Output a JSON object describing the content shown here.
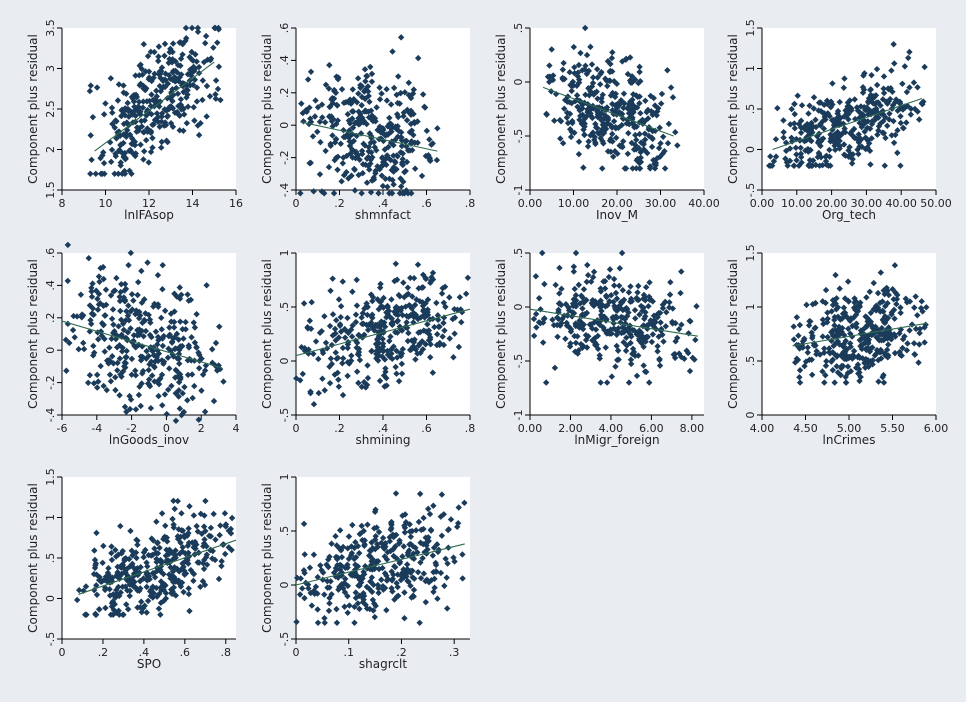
{
  "chart_data": [
    {
      "type": "scatter",
      "xlabel": "lnIFAsop",
      "ylabel": "Component plus residual",
      "xlim": [
        8,
        16
      ],
      "ylim": [
        1.5,
        3.5
      ],
      "xticks": [
        8,
        10,
        12,
        14,
        16
      ],
      "xtick_labels": [
        "8",
        "10",
        "12",
        "14",
        "16"
      ],
      "yticks": [
        1.5,
        2,
        2.5,
        3,
        3.5
      ],
      "ytick_labels": [
        "1.5",
        "2",
        "2.5",
        "3",
        "3.5"
      ],
      "fit_line": {
        "x": [
          9.5,
          15
        ],
        "y": [
          1.98,
          3.08
        ]
      },
      "points": {
        "x_range": [
          9.2,
          15.3
        ],
        "y_range": [
          1.7,
          3.5
        ],
        "n": 360
      },
      "colors": {
        "point": "#1b3b5a",
        "fit_line": "#2f6b4f"
      }
    },
    {
      "type": "scatter",
      "xlabel": "shmnfact",
      "ylabel": "Component plus residual",
      "xlim": [
        0,
        0.8
      ],
      "ylim": [
        -0.4,
        0.6
      ],
      "xticks": [
        0,
        0.2,
        0.4,
        0.6,
        0.8
      ],
      "xtick_labels": [
        "0",
        ".2",
        ".4",
        ".6",
        ".8"
      ],
      "yticks": [
        -0.4,
        -0.2,
        0,
        0.2,
        0.4,
        0.6
      ],
      "ytick_labels": [
        "-.4",
        "-.2",
        "0",
        ".2",
        ".4",
        ".6"
      ],
      "fit_line": {
        "x": [
          0.02,
          0.65
        ],
        "y": [
          0.02,
          -0.16
        ]
      },
      "points": {
        "x_range": [
          0.02,
          0.65
        ],
        "y_range": [
          -0.42,
          0.62
        ],
        "n": 360
      },
      "colors": {
        "point": "#1b3b5a",
        "fit_line": "#2f6b4f"
      }
    },
    {
      "type": "scatter",
      "xlabel": "Inov_M",
      "ylabel": "Component plus residual",
      "xlim": [
        0,
        40
      ],
      "ylim": [
        -1,
        0.5
      ],
      "xticks": [
        0,
        10,
        20,
        30,
        40
      ],
      "xtick_labels": [
        "0.00",
        "10.00",
        "20.00",
        "30.00",
        "40.00"
      ],
      "yticks": [
        -1,
        -0.5,
        0,
        0.5
      ],
      "ytick_labels": [
        "-1",
        "-.5",
        "0",
        ".5"
      ],
      "fit_line": {
        "x": [
          3,
          33
        ],
        "y": [
          -0.05,
          -0.5
        ]
      },
      "points": {
        "x_range": [
          3,
          34
        ],
        "y_range": [
          -0.8,
          0.5
        ],
        "n": 360
      },
      "colors": {
        "point": "#1b3b5a",
        "fit_line": "#2f6b4f"
      }
    },
    {
      "type": "scatter",
      "xlabel": "Org_tech",
      "ylabel": "Component plus residual",
      "xlim": [
        0,
        50
      ],
      "ylim": [
        -0.5,
        1.5
      ],
      "xticks": [
        0,
        10,
        20,
        30,
        40,
        50
      ],
      "xtick_labels": [
        "0.00",
        "10.00",
        "20.00",
        "30.00",
        "40.00",
        "50.00"
      ],
      "yticks": [
        -0.5,
        0,
        0.5,
        1,
        1.5
      ],
      "ytick_labels": [
        "-.5",
        "0",
        ".5",
        "1",
        "1.5"
      ],
      "fit_line": {
        "x": [
          3,
          46
        ],
        "y": [
          0.0,
          0.63
        ]
      },
      "points": {
        "x_range": [
          2,
          47
        ],
        "y_range": [
          -0.2,
          1.3
        ],
        "n": 360
      },
      "colors": {
        "point": "#1b3b5a",
        "fit_line": "#2f6b4f"
      }
    },
    {
      "type": "scatter",
      "xlabel": "lnGoods_inov",
      "ylabel": "Component plus residual",
      "xlim": [
        -6,
        4
      ],
      "ylim": [
        -0.4,
        0.6
      ],
      "xticks": [
        -6,
        -4,
        -2,
        0,
        2,
        4
      ],
      "xtick_labels": [
        "-6",
        "-4",
        "-2",
        "0",
        "2",
        "4"
      ],
      "yticks": [
        -0.4,
        -0.2,
        0,
        0.2,
        0.4,
        0.6
      ],
      "ytick_labels": [
        "-.4",
        "-.2",
        "0",
        ".2",
        ".4",
        ".6"
      ],
      "fit_line": {
        "x": [
          -6,
          3.2
        ],
        "y": [
          0.18,
          -0.11
        ]
      },
      "points": {
        "x_range": [
          -5.8,
          3.3
        ],
        "y_range": [
          -0.45,
          0.65
        ],
        "n": 360
      },
      "colors": {
        "point": "#1b3b5a",
        "fit_line": "#2f6b4f"
      }
    },
    {
      "type": "scatter",
      "xlabel": "shmining",
      "ylabel": "Component plus residual",
      "xlim": [
        0,
        0.8
      ],
      "ylim": [
        -0.5,
        1
      ],
      "xticks": [
        0,
        0.2,
        0.4,
        0.6,
        0.8
      ],
      "xtick_labels": [
        "0",
        ".2",
        ".4",
        ".6",
        ".8"
      ],
      "yticks": [
        -0.5,
        0,
        0.5,
        1
      ],
      "ytick_labels": [
        "-.5",
        "0",
        ".5",
        "1"
      ],
      "fit_line": {
        "x": [
          0,
          0.8
        ],
        "y": [
          0.05,
          0.48
        ]
      },
      "points": {
        "x_range": [
          0,
          0.8
        ],
        "y_range": [
          -0.4,
          0.9
        ],
        "n": 360
      },
      "colors": {
        "point": "#1b3b5a",
        "fit_line": "#2f6b4f"
      }
    },
    {
      "type": "scatter",
      "xlabel": "lnMigr_foreign",
      "ylabel": "Component plus residual",
      "xlim": [
        0,
        8.6
      ],
      "ylim": [
        -1,
        0.5
      ],
      "xticks": [
        0,
        2,
        4,
        6,
        8
      ],
      "xtick_labels": [
        "0.00",
        "2.00",
        "4.00",
        "6.00",
        "8.00"
      ],
      "yticks": [
        -1,
        -0.5,
        0,
        0.5
      ],
      "ytick_labels": [
        "-1",
        "-.5",
        "0",
        ".5"
      ],
      "fit_line": {
        "x": [
          0,
          8.3
        ],
        "y": [
          -0.02,
          -0.27
        ]
      },
      "points": {
        "x_range": [
          0,
          8.3
        ],
        "y_range": [
          -0.7,
          0.5
        ],
        "n": 360
      },
      "colors": {
        "point": "#1b3b5a",
        "fit_line": "#2f6b4f"
      }
    },
    {
      "type": "scatter",
      "xlabel": "lnCrimes",
      "ylabel": "Component plus residual",
      "xlim": [
        4,
        6
      ],
      "ylim": [
        0,
        1.5
      ],
      "xticks": [
        4,
        4.5,
        5,
        5.5,
        6
      ],
      "xtick_labels": [
        "4.00",
        "4.50",
        "5.00",
        "5.50",
        "6.00"
      ],
      "yticks": [
        0,
        0.5,
        1,
        1.5
      ],
      "ytick_labels": [
        "0",
        ".5",
        "1",
        "1.5"
      ],
      "fit_line": {
        "x": [
          4.35,
          5.9
        ],
        "y": [
          0.64,
          0.85
        ]
      },
      "points": {
        "x_range": [
          4.35,
          5.9
        ],
        "y_range": [
          0.3,
          1.4
        ],
        "n": 360
      },
      "colors": {
        "point": "#1b3b5a",
        "fit_line": "#2f6b4f"
      }
    },
    {
      "type": "scatter",
      "xlabel": "SPO",
      "ylabel": "Component plus residual",
      "xlim": [
        0,
        0.85
      ],
      "ylim": [
        -0.5,
        1.5
      ],
      "xticks": [
        0,
        0.2,
        0.4,
        0.6,
        0.8
      ],
      "xtick_labels": [
        "0",
        ".2",
        ".4",
        ".6",
        ".8"
      ],
      "yticks": [
        -0.5,
        0,
        0.5,
        1,
        1.5
      ],
      "ytick_labels": [
        "-.5",
        "0",
        ".5",
        "1",
        "1.5"
      ],
      "fit_line": {
        "x": [
          0.08,
          0.85
        ],
        "y": [
          0.05,
          0.72
        ]
      },
      "points": {
        "x_range": [
          0.07,
          0.84
        ],
        "y_range": [
          -0.2,
          1.3
        ],
        "n": 360
      },
      "colors": {
        "point": "#1b3b5a",
        "fit_line": "#2f6b4f"
      }
    },
    {
      "type": "scatter",
      "xlabel": "shagrclt",
      "ylabel": "Component plus residual",
      "xlim": [
        0,
        0.33
      ],
      "ylim": [
        -0.5,
        1
      ],
      "xticks": [
        0,
        0.1,
        0.2,
        0.3
      ],
      "xtick_labels": [
        "0",
        ".1",
        ".2",
        ".3"
      ],
      "yticks": [
        -0.5,
        0,
        0.5,
        1
      ],
      "ytick_labels": [
        "-.5",
        "0",
        ".5",
        "1"
      ],
      "fit_line": {
        "x": [
          0,
          0.32
        ],
        "y": [
          0.0,
          0.38
        ]
      },
      "points": {
        "x_range": [
          0,
          0.32
        ],
        "y_range": [
          -0.35,
          0.9
        ],
        "n": 360
      },
      "colors": {
        "point": "#1b3b5a",
        "fit_line": "#2f6b4f"
      }
    }
  ]
}
